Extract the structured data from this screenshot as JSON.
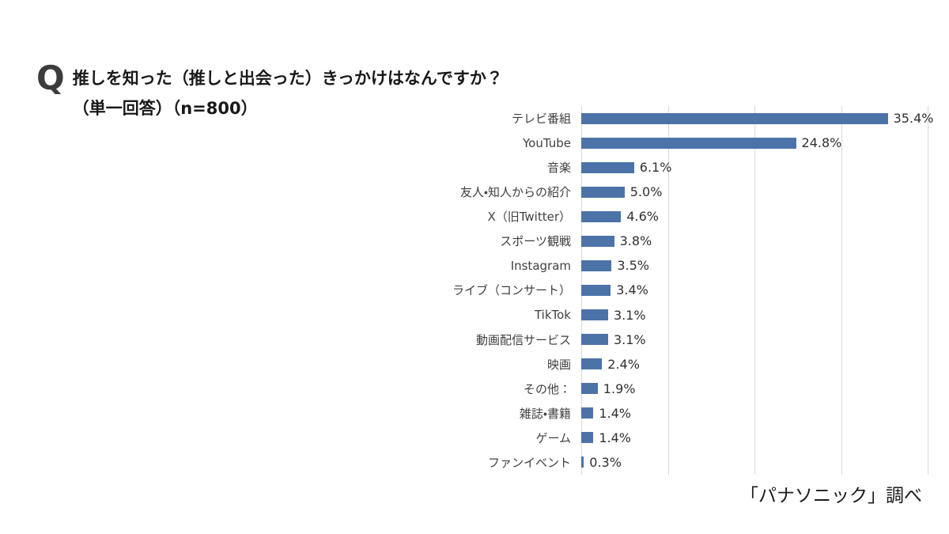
{
  "question": {
    "marker": "Q",
    "line1": "推しを知った（推しと出会った）きっかけはなんですか？",
    "line2": "（単一回答）（n=800）"
  },
  "source": "「パナソニック」調べ",
  "chart_data": {
    "type": "bar",
    "orientation": "horizontal",
    "title": "推しを知った（推しと出会った）きっかけはなんですか？（単一回答）（n=800）",
    "xlabel": "",
    "ylabel": "",
    "xlim": [
      0,
      40
    ],
    "gridline_interval": 10,
    "grid": true,
    "legend": false,
    "bar_color": "#4c73a8",
    "gridline_color": "#d9d9d9",
    "categories": [
      "テレビ番組",
      "YouTube",
      "音楽",
      "友人・知人からの紹介",
      "X（旧Twitter）",
      "スポーツ観戦",
      "Instagram",
      "ライブ（コンサート）",
      "TikTok",
      "動画配信サービス",
      "映画",
      "その他：",
      "雑誌・書籍",
      "ゲーム",
      "ファンイベント"
    ],
    "values": [
      35.4,
      24.8,
      6.1,
      5.0,
      4.6,
      3.8,
      3.5,
      3.4,
      3.1,
      3.1,
      2.4,
      1.9,
      1.4,
      1.4,
      0.3
    ],
    "value_labels": [
      "35.4%",
      "24.8%",
      "6.1%",
      "5.0%",
      "4.6%",
      "3.8%",
      "3.5%",
      "3.4%",
      "3.1%",
      "3.1%",
      "2.4%",
      "1.9%",
      "1.4%",
      "1.4%",
      "0.3%"
    ]
  }
}
